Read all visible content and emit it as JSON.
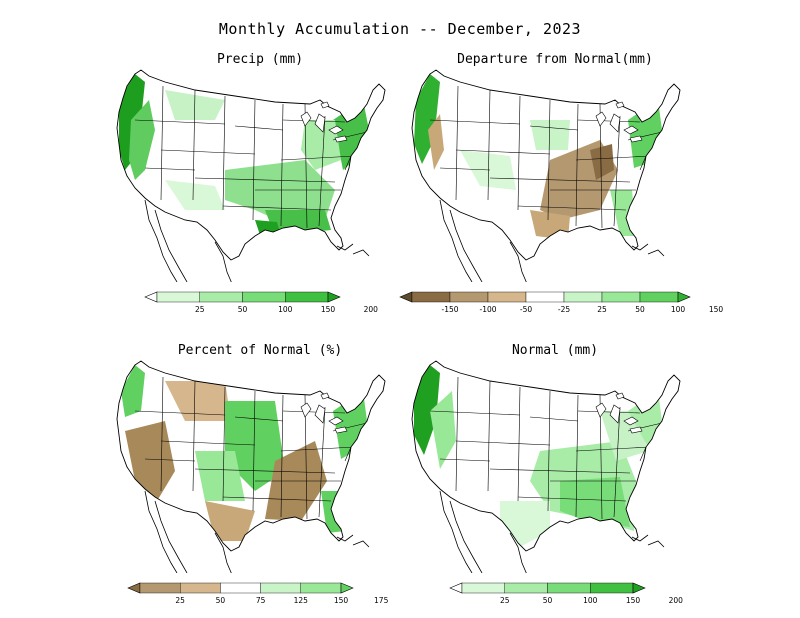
{
  "title": "Monthly Accumulation -- December, 2023",
  "panels": [
    {
      "title": "Precip (mm)",
      "scheme": "precip"
    },
    {
      "title": "Departure from Normal(mm)",
      "scheme": "departure"
    },
    {
      "title": "Percent of Normal (%)",
      "scheme": "percent"
    },
    {
      "title": "Normal (mm)",
      "scheme": "normal"
    }
  ],
  "colorbars": [
    {
      "ticks": [
        "25",
        "50",
        "100",
        "150",
        "200"
      ],
      "colors": [
        "#ffffff",
        "#d8f8d8",
        "#a8eca8",
        "#78dc78",
        "#40c040",
        "#20a020"
      ]
    },
    {
      "ticks": [
        "-150",
        "-100",
        "-50",
        "-25",
        "25",
        "50",
        "100",
        "150"
      ],
      "colors": [
        "#5c4a2a",
        "#8a6c44",
        "#b49870",
        "#d6b68c",
        "#ffffff",
        "#c8f4c8",
        "#98e898",
        "#60d060",
        "#30b030"
      ]
    },
    {
      "ticks": [
        "25",
        "50",
        "75",
        "125",
        "150",
        "175"
      ],
      "colors": [
        "#8a6c44",
        "#b49870",
        "#d6b68c",
        "#ffffff",
        "#c8f4c8",
        "#98e898",
        "#60d060"
      ]
    },
    {
      "ticks": [
        "25",
        "50",
        "100",
        "150",
        "200"
      ],
      "colors": [
        "#ffffff",
        "#d8f8d8",
        "#a8eca8",
        "#78dc78",
        "#40c040",
        "#20a020"
      ]
    }
  ],
  "colors": {
    "green_dark": "#1e9e1e",
    "green_mid": "#6ad46a",
    "green_light": "#c6f2c6",
    "brown_dark": "#8a6c44",
    "brown_light": "#c8a878"
  }
}
